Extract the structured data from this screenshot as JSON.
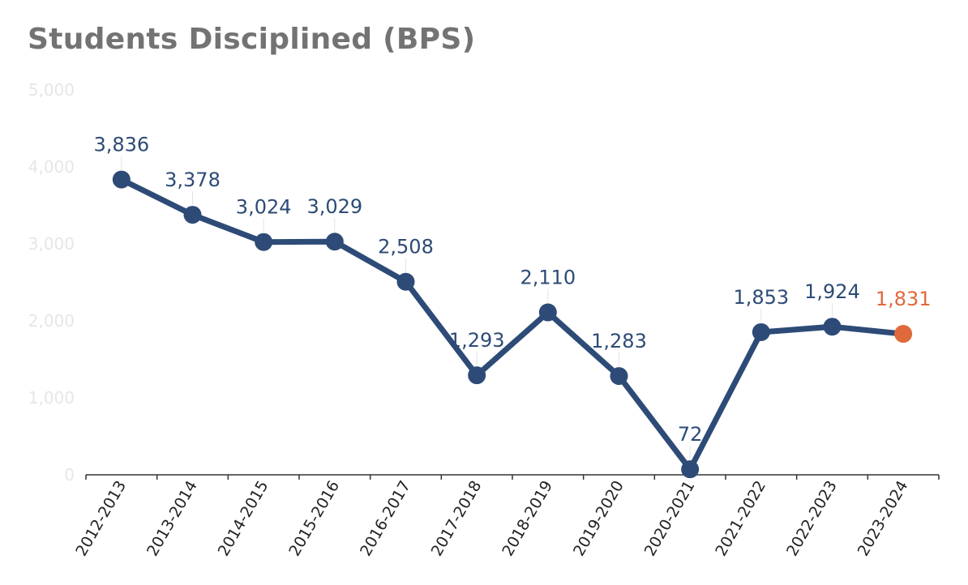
{
  "chart_data": {
    "type": "line",
    "title": "Students Disciplined (BPS)",
    "categories": [
      "2012-2013",
      "2013-2014",
      "2014-2015",
      "2015-2016",
      "2016-2017",
      "2017-2018",
      "2018-2019",
      "2019-2020",
      "2020-2021",
      "2021-2022",
      "2022-2023",
      "2023-2024"
    ],
    "values": [
      3836,
      3378,
      3024,
      3029,
      2508,
      1293,
      2110,
      1283,
      72,
      1853,
      1924,
      1831
    ],
    "data_labels": [
      "3,836",
      "3,378",
      "3,024",
      "3,029",
      "2,508",
      "1,293",
      "2,110",
      "1,283",
      "72",
      "1,853",
      "1,924",
      "1,831"
    ],
    "y_ticks": [
      0,
      1000,
      2000,
      3000,
      4000,
      5000
    ],
    "y_tick_labels": [
      "0",
      "1,000",
      "2,000",
      "3,000",
      "4,000",
      "5,000"
    ],
    "ylim": [
      0,
      5000
    ],
    "grid": false,
    "legend": "none",
    "highlight_index": 11,
    "colors": {
      "line": "#2d4b76",
      "label": "#2d4b76",
      "highlight": "#e0693c",
      "axis": "#333333",
      "tick_label": "#e6e6e6",
      "title": "#737373",
      "leader": "#e3e3e3"
    }
  }
}
